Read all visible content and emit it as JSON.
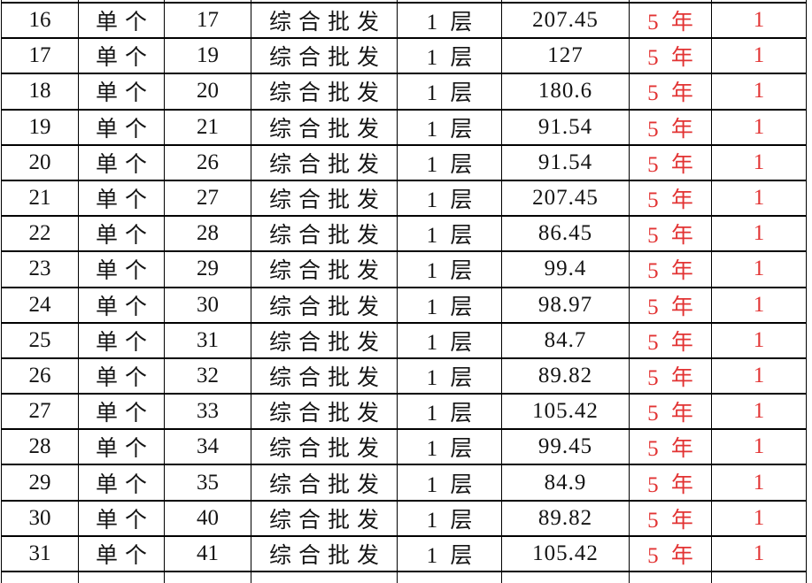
{
  "colors": {
    "red_text": "#e23333",
    "text": "#141414",
    "border": "#000000",
    "background": "#ffffff"
  },
  "table": {
    "red_columns": [
      6,
      7
    ],
    "rows": [
      [
        "16",
        "单个",
        "17",
        "综合批发",
        "1 层",
        "207.45",
        "5 年",
        "1"
      ],
      [
        "17",
        "单个",
        "19",
        "综合批发",
        "1 层",
        "127",
        "5 年",
        "1"
      ],
      [
        "18",
        "单个",
        "20",
        "综合批发",
        "1 层",
        "180.6",
        "5 年",
        "1"
      ],
      [
        "19",
        "单个",
        "21",
        "综合批发",
        "1 层",
        "91.54",
        "5 年",
        "1"
      ],
      [
        "20",
        "单个",
        "26",
        "综合批发",
        "1 层",
        "91.54",
        "5 年",
        "1"
      ],
      [
        "21",
        "单个",
        "27",
        "综合批发",
        "1 层",
        "207.45",
        "5 年",
        "1"
      ],
      [
        "22",
        "单个",
        "28",
        "综合批发",
        "1 层",
        "86.45",
        "5 年",
        "1"
      ],
      [
        "23",
        "单个",
        "29",
        "综合批发",
        "1 层",
        "99.4",
        "5 年",
        "1"
      ],
      [
        "24",
        "单个",
        "30",
        "综合批发",
        "1 层",
        "98.97",
        "5 年",
        "1"
      ],
      [
        "25",
        "单个",
        "31",
        "综合批发",
        "1 层",
        "84.7",
        "5 年",
        "1"
      ],
      [
        "26",
        "单个",
        "32",
        "综合批发",
        "1 层",
        "89.82",
        "5 年",
        "1"
      ],
      [
        "27",
        "单个",
        "33",
        "综合批发",
        "1 层",
        "105.42",
        "5 年",
        "1"
      ],
      [
        "28",
        "单个",
        "34",
        "综合批发",
        "1 层",
        "99.45",
        "5 年",
        "1"
      ],
      [
        "29",
        "单个",
        "35",
        "综合批发",
        "1 层",
        "84.9",
        "5 年",
        "1"
      ],
      [
        "30",
        "单个",
        "40",
        "综合批发",
        "1 层",
        "89.82",
        "5 年",
        "1"
      ],
      [
        "31",
        "单个",
        "41",
        "综合批发",
        "1 层",
        "105.42",
        "5 年",
        "1"
      ]
    ]
  }
}
